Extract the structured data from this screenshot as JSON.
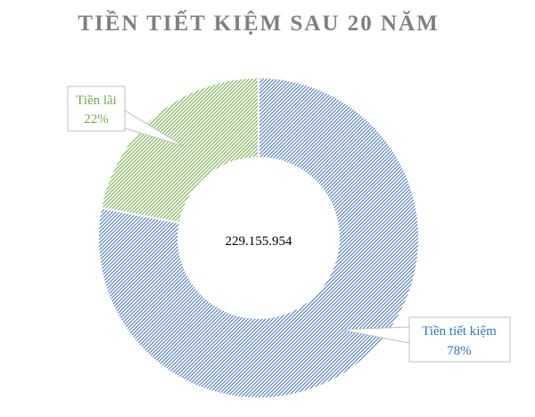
{
  "chart_data": {
    "type": "donut",
    "title": "TIỀN TIẾT KIỆM SAU 20 NĂM",
    "center_label": "229.155.954",
    "categories": [
      "Tiền tiết kiệm",
      "Tiền lãi"
    ],
    "values": [
      78,
      22
    ],
    "percent_labels": [
      "78%",
      "22%"
    ],
    "colors": [
      "#4472c4",
      "#70ad47"
    ],
    "fill_pattern": "diagonal-hatch",
    "legend": "none (callout data labels)"
  }
}
